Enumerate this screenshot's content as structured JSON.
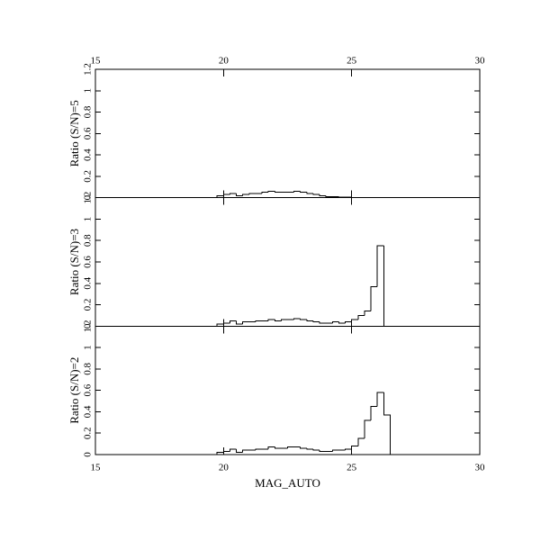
{
  "chart_data": [
    {
      "type": "histogram",
      "ylabel": "Ratio (S/N)=5",
      "bins": [
        19.75,
        20,
        20.25,
        20.5,
        20.75,
        21,
        21.25,
        21.5,
        21.75,
        22,
        22.25,
        22.5,
        22.75,
        23,
        23.25,
        23.5,
        23.75,
        24,
        24.25,
        24.5,
        24.75,
        25,
        25.25,
        25.5,
        25.75,
        26,
        26.25,
        26.5
      ],
      "values": [
        0.02,
        0.03,
        0.04,
        0.02,
        0.03,
        0.04,
        0.04,
        0.05,
        0.06,
        0.05,
        0.05,
        0.05,
        0.06,
        0.05,
        0.04,
        0.03,
        0.02,
        0.01,
        0.01,
        0.005,
        0.005,
        0,
        0,
        0,
        0,
        0,
        0
      ],
      "xlim": [
        15,
        30
      ],
      "xticks": [
        15,
        20,
        25,
        30
      ],
      "xticks_position": "top",
      "ylim": [
        0,
        1.2
      ],
      "yticks": [
        0,
        0.2,
        0.4,
        0.6,
        0.8,
        1,
        1.2
      ],
      "color": "#000000"
    },
    {
      "type": "histogram",
      "ylabel": "Ratio (S/N)=3",
      "bins": [
        19.75,
        20,
        20.25,
        20.5,
        20.75,
        21,
        21.25,
        21.5,
        21.75,
        22,
        22.25,
        22.5,
        22.75,
        23,
        23.25,
        23.5,
        23.75,
        24,
        24.25,
        24.5,
        24.75,
        25,
        25.25,
        25.5,
        25.75,
        26,
        26.25,
        26.5
      ],
      "values": [
        0.02,
        0.03,
        0.05,
        0.02,
        0.04,
        0.04,
        0.05,
        0.05,
        0.06,
        0.05,
        0.06,
        0.06,
        0.07,
        0.06,
        0.05,
        0.04,
        0.03,
        0.03,
        0.04,
        0.03,
        0.04,
        0.06,
        0.1,
        0.14,
        0.37,
        0.75,
        0
      ],
      "xlim": [
        15,
        30
      ],
      "ylim": [
        0,
        1.2
      ],
      "yticks": [
        0,
        0.2,
        0.4,
        0.6,
        0.8,
        1,
        1.2
      ],
      "color": "#000000"
    },
    {
      "type": "histogram",
      "ylabel": "Ratio (S/N)=2",
      "xlabel": "MAG_AUTO",
      "bins": [
        19.75,
        20,
        20.25,
        20.5,
        20.75,
        21,
        21.25,
        21.5,
        21.75,
        22,
        22.25,
        22.5,
        22.75,
        23,
        23.25,
        23.5,
        23.75,
        24,
        24.25,
        24.5,
        24.75,
        25,
        25.25,
        25.5,
        25.75,
        26,
        26.25,
        26.5
      ],
      "values": [
        0.02,
        0.03,
        0.05,
        0.02,
        0.04,
        0.04,
        0.05,
        0.05,
        0.07,
        0.06,
        0.06,
        0.07,
        0.07,
        0.06,
        0.05,
        0.04,
        0.03,
        0.03,
        0.04,
        0.04,
        0.05,
        0.08,
        0.15,
        0.32,
        0.45,
        0.58,
        0.37
      ],
      "xlim": [
        15,
        30
      ],
      "xticks": [
        15,
        20,
        25,
        30
      ],
      "xticks_position": "bottom",
      "ylim": [
        0,
        1.2
      ],
      "yticks": [
        0,
        0.2,
        0.4,
        0.6,
        0.8,
        1,
        1.2
      ],
      "color": "#000000"
    }
  ]
}
